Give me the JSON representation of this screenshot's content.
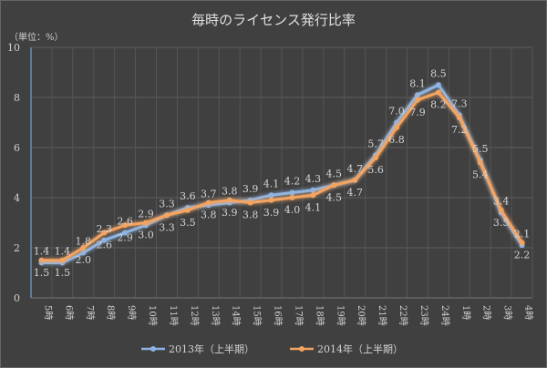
{
  "chart_data": {
    "type": "line",
    "title": "毎時のライセンス発行比率",
    "unit_label": "（単位：%）",
    "categories": [
      "5時",
      "6時",
      "7時",
      "8時",
      "9時",
      "10時",
      "11時",
      "12時",
      "13時",
      "14時",
      "15時",
      "16時",
      "17時",
      "18時",
      "19時",
      "20時",
      "21時",
      "22時",
      "23時",
      "24時",
      "1時",
      "2時",
      "3時",
      "4時"
    ],
    "ylim": [
      0,
      10
    ],
    "yticks": [
      0,
      2,
      4,
      6,
      8,
      10
    ],
    "grid": true,
    "legend_position": "bottom",
    "series": [
      {
        "name": "2013年（上半期）",
        "color": "#8fb4e3",
        "values": [
          1.4,
          1.4,
          1.8,
          2.3,
          2.6,
          2.9,
          3.3,
          3.6,
          3.7,
          3.8,
          3.9,
          4.1,
          4.2,
          4.3,
          4.5,
          4.7,
          5.7,
          7.0,
          8.1,
          8.5,
          7.3,
          5.5,
          3.4,
          2.1
        ]
      },
      {
        "name": "2014年（上半期）",
        "color": "#f4a460",
        "values": [
          1.5,
          1.5,
          2.0,
          2.6,
          2.9,
          3.0,
          3.3,
          3.5,
          3.8,
          3.9,
          3.8,
          3.9,
          4.0,
          4.1,
          4.5,
          4.7,
          5.6,
          6.8,
          7.9,
          8.2,
          7.2,
          5.4,
          3.5,
          2.2
        ]
      }
    ]
  }
}
